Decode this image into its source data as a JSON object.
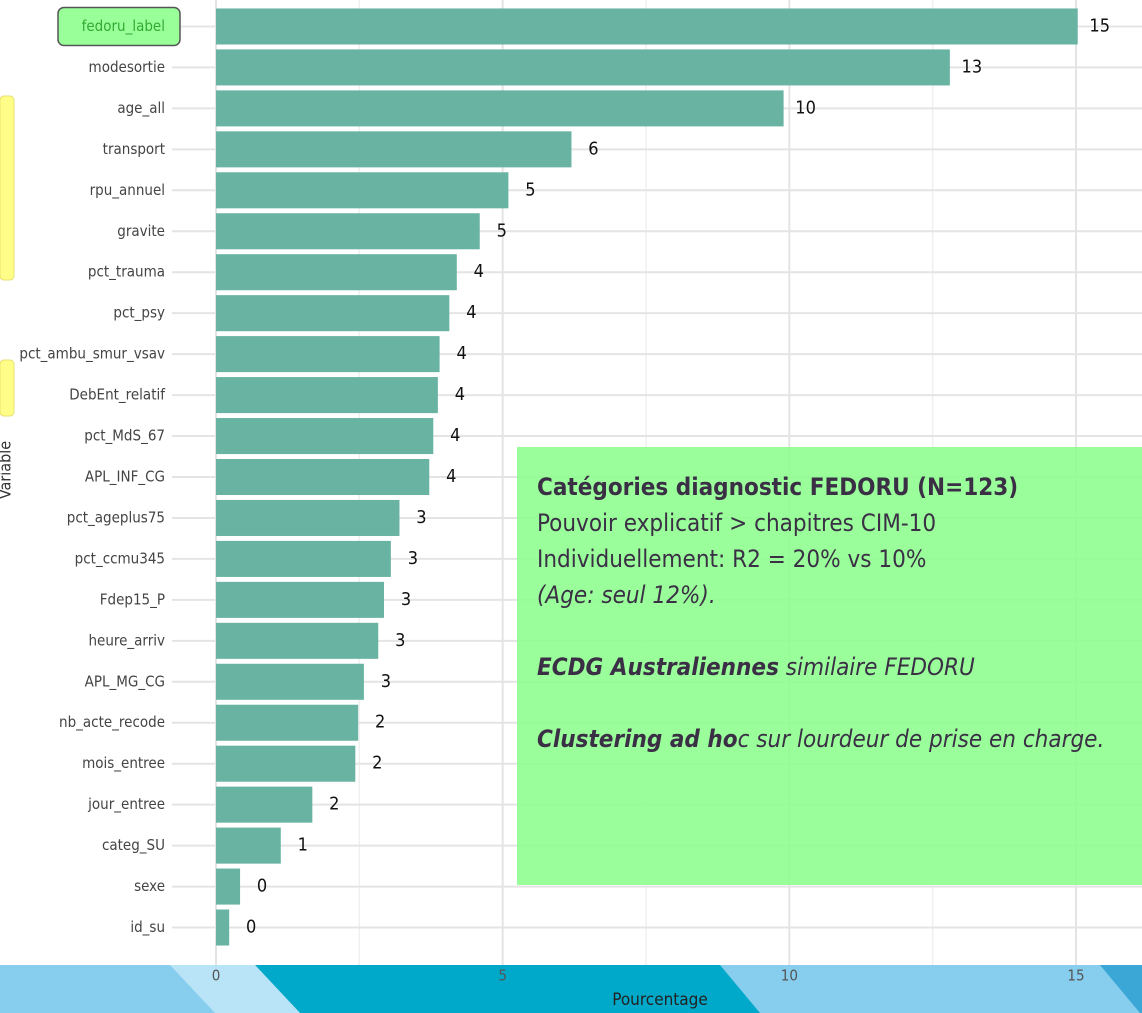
{
  "chart_data": {
    "type": "barh",
    "categories": [
      "fedoru_label",
      "modesortie",
      "age_all",
      "transport",
      "rpu_annuel",
      "gravite",
      "pct_trauma",
      "pct_psy",
      "pct_ambu_smur_vsav",
      "DebEnt_relatif",
      "pct_MdS_67",
      "APL_INF_CG",
      "pct_ageplus75",
      "pct_ccmu345",
      "Fdep15_P",
      "heure_arriv",
      "APL_MG_CG",
      "nb_acte_recode",
      "mois_entree",
      "jour_entree",
      "categ_SU",
      "sexe",
      "id_su"
    ],
    "values": [
      15.03,
      12.8,
      9.9,
      6.2,
      5.1,
      4.6,
      4.2,
      4.07,
      3.9,
      3.87,
      3.79,
      3.72,
      3.2,
      3.05,
      2.93,
      2.83,
      2.58,
      2.48,
      2.43,
      1.68,
      1.13,
      0.42,
      0.23
    ],
    "value_labels": [
      "15",
      "13",
      "10",
      "6",
      "5",
      "5",
      "4",
      "4",
      "4",
      "4",
      "4",
      "4",
      "3",
      "3",
      "3",
      "3",
      "3",
      "2",
      "2",
      "2",
      "1",
      "0",
      "0"
    ],
    "color": "#69b3a2",
    "xlim": [
      0,
      15.7
    ],
    "xticks": [
      0,
      5,
      10,
      15
    ],
    "xminorticks": [
      2.5,
      7.5,
      12.5
    ],
    "grid": true,
    "highlight_index": 0,
    "xlabel": "Pourcentage",
    "ylabel": "Variable"
  },
  "annotation": {
    "title": "Catégories diagnostic FEDORU (N=123)",
    "lines": [
      "Pouvoir explicatif > chapitres CIM-10",
      "Individuellement: R2 = 20% vs 10%"
    ],
    "italic_line": "(Age: seul  12%).",
    "ecdg": {
      "bold": "ECDG Australiennes",
      "rest": " similaire FEDORU"
    },
    "clustering": {
      "bold": "Clustering ad ho",
      "rest": "c sur lourdeur de prise en charge."
    }
  }
}
